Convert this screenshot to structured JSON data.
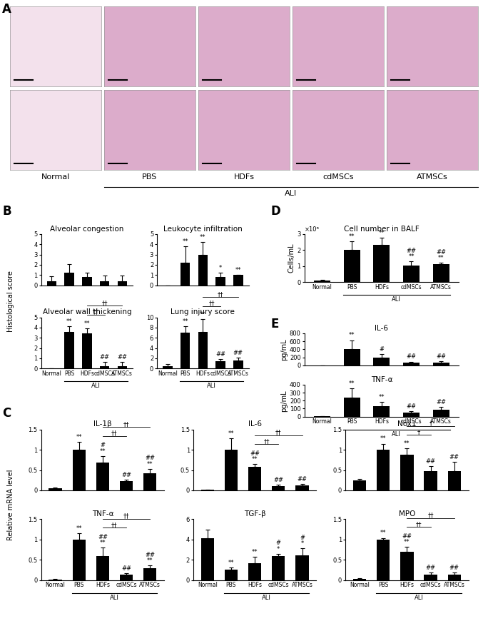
{
  "panel_A": {
    "panel": "A",
    "type": "image_grid",
    "rows": 2,
    "columns": [
      "Normal",
      "PBS",
      "HDFs",
      "cdMSCs",
      "ATMSCs"
    ],
    "group_label": "ALI",
    "group_span": [
      1,
      4
    ]
  },
  "chart_data": [
    {
      "type": "bar",
      "panel": "B",
      "title": "Alveolar congestion",
      "ylabel": "Histological score",
      "color": "#000000",
      "categories": [
        null,
        null,
        null,
        null,
        null
      ],
      "values": [
        0.4,
        1.2,
        0.8,
        0.4,
        0.4
      ],
      "errors": [
        0.5,
        0.85,
        0.45,
        0.55,
        0.55
      ],
      "marks": [
        [],
        [],
        [],
        [],
        []
      ],
      "brackets": [],
      "ylim": [
        0,
        5
      ],
      "yticks": [
        0,
        1,
        2,
        3,
        4,
        5
      ]
    },
    {
      "type": "bar",
      "title": "Leukocyte infiltration",
      "color": "#000000",
      "categories": [
        null,
        null,
        null,
        null,
        null
      ],
      "values": [
        0,
        2.2,
        3.0,
        0.8,
        1.0
      ],
      "errors": [
        0,
        1.6,
        1.2,
        0.45,
        0
      ],
      "marks": [
        [],
        [
          "**"
        ],
        [
          "**"
        ],
        [
          "*"
        ],
        [
          "**"
        ]
      ],
      "brackets": [],
      "ylim": [
        0,
        5
      ],
      "yticks": [
        0,
        1,
        2,
        3,
        4,
        5
      ]
    },
    {
      "type": "bar",
      "title": "Alveolar wall thickening",
      "color": "#000000",
      "categories": [
        "Normal",
        "PBS",
        "HDFs",
        "cdMSCs",
        "ATMSCs"
      ],
      "group_label": "ALI",
      "group_span": [
        1,
        4
      ],
      "values": [
        0,
        3.6,
        3.4,
        0.2,
        0.2
      ],
      "errors": [
        0,
        0.55,
        0.55,
        0.45,
        0.45
      ],
      "marks": [
        [],
        [
          "**"
        ],
        [
          "**"
        ],
        [
          "##"
        ],
        [
          "##"
        ]
      ],
      "brackets": [
        {
          "from": 2,
          "to": 3,
          "text": "††"
        },
        {
          "from": 2,
          "to": 4,
          "text": "††"
        }
      ],
      "ylim": [
        0,
        5
      ],
      "yticks": [
        0,
        1,
        2,
        3,
        4,
        5
      ]
    },
    {
      "type": "bar",
      "title": "Lung injury score",
      "color": "#000000",
      "categories": [
        "Normal",
        "PBS",
        "HDFs",
        "cdMSCs",
        "ATMSCs"
      ],
      "group_label": "ALI",
      "group_span": [
        1,
        4
      ],
      "values": [
        0.4,
        7.0,
        7.2,
        1.4,
        1.6
      ],
      "errors": [
        0.5,
        1.2,
        2.4,
        0.5,
        0.5
      ],
      "marks": [
        [],
        [
          "**"
        ],
        [
          "**"
        ],
        [
          "##"
        ],
        [
          "##"
        ]
      ],
      "brackets": [
        {
          "from": 2,
          "to": 3,
          "text": "††"
        },
        {
          "from": 2,
          "to": 4,
          "text": "††"
        }
      ],
      "ylim": [
        0,
        10
      ],
      "yticks": [
        0,
        2,
        4,
        6,
        8,
        10
      ]
    },
    {
      "type": "bar",
      "panel": "C",
      "title": "IL-1β",
      "ylabel": "Relative mRNA level",
      "color": "#000000",
      "categories": [
        null,
        null,
        null,
        null,
        null
      ],
      "values": [
        0.05,
        1.0,
        0.68,
        0.23,
        0.43
      ],
      "errors": [
        0.02,
        0.2,
        0.17,
        0.04,
        0.1
      ],
      "marks": [
        [],
        [
          "**"
        ],
        [
          "#",
          "**"
        ],
        [
          "##"
        ],
        [
          "##",
          "**"
        ]
      ],
      "brackets": [
        {
          "from": 2,
          "to": 3,
          "text": "††"
        },
        {
          "from": 2,
          "to": 4,
          "text": "††"
        }
      ],
      "ylim": [
        0,
        1.5
      ],
      "yticks": [
        0,
        0.5,
        1,
        1.5
      ]
    },
    {
      "type": "bar",
      "title": "IL-6",
      "color": "#000000",
      "categories": [
        null,
        null,
        null,
        null,
        null
      ],
      "values": [
        0.01,
        1.0,
        0.58,
        0.1,
        0.12
      ],
      "errors": [
        0.01,
        0.28,
        0.07,
        0.04,
        0.04
      ],
      "marks": [
        [],
        [
          "**"
        ],
        [
          "##",
          "**"
        ],
        [
          "##"
        ],
        [
          "##"
        ]
      ],
      "brackets": [
        {
          "from": 2,
          "to": 3,
          "text": "††"
        },
        {
          "from": 2,
          "to": 4,
          "text": "††"
        }
      ],
      "ylim": [
        0,
        1.5
      ],
      "yticks": [
        0,
        0.5,
        1,
        1.5
      ]
    },
    {
      "type": "bar",
      "title": "Nox1",
      "color": "#000000",
      "categories": [
        null,
        null,
        null,
        null,
        null
      ],
      "values": [
        0.24,
        1.0,
        0.87,
        0.47,
        0.48
      ],
      "errors": [
        0.04,
        0.15,
        0.17,
        0.12,
        0.22
      ],
      "marks": [
        [],
        [
          "**"
        ],
        [
          "**"
        ],
        [
          "##"
        ],
        [
          "##"
        ]
      ],
      "brackets": [
        {
          "from": 2,
          "to": 3,
          "text": "†"
        },
        {
          "from": 2,
          "to": 4,
          "text": "†"
        }
      ],
      "ylim": [
        0,
        1.5
      ],
      "yticks": [
        0,
        0.5,
        1,
        1.5
      ]
    },
    {
      "type": "bar",
      "title": "TNF-α",
      "color": "#000000",
      "categories": [
        "Normal",
        "PBS",
        "HDFs",
        "cdMSCs",
        "ATMSCs"
      ],
      "group_label": "ALI",
      "group_span": [
        1,
        4
      ],
      "values": [
        0.02,
        1.0,
        0.6,
        0.14,
        0.3
      ],
      "errors": [
        0.01,
        0.15,
        0.2,
        0.03,
        0.06
      ],
      "marks": [
        [],
        [
          "**"
        ],
        [
          "##",
          "**"
        ],
        [
          "##"
        ],
        [
          "##",
          "**"
        ]
      ],
      "brackets": [
        {
          "from": 2,
          "to": 3,
          "text": "††"
        },
        {
          "from": 2,
          "to": 4,
          "text": "††"
        }
      ],
      "ylim": [
        0,
        1.5
      ],
      "yticks": [
        0,
        0.5,
        1,
        1.5
      ]
    },
    {
      "type": "bar",
      "title": "TGF-β",
      "color": "#000000",
      "categories": [
        "Normal",
        "PBS",
        "HDFs",
        "cdMSCs",
        "ATMSCs"
      ],
      "group_label": "ALI",
      "group_span": [
        1,
        4
      ],
      "values": [
        4.1,
        1.0,
        1.7,
        2.35,
        2.45
      ],
      "errors": [
        0.9,
        0.25,
        0.6,
        0.25,
        0.7
      ],
      "marks": [
        [],
        [
          "**"
        ],
        [
          "**"
        ],
        [
          "#",
          "*"
        ],
        [
          "#",
          "*"
        ]
      ],
      "brackets": [],
      "ylim": [
        0,
        6
      ],
      "yticks": [
        0,
        2,
        4,
        6
      ]
    },
    {
      "type": "bar",
      "title": "MPO",
      "color": "#000000",
      "categories": [
        "Normal",
        "PBS",
        "HDFs",
        "cdMSCs",
        "ATMSCs"
      ],
      "group_label": "ALI",
      "group_span": [
        1,
        4
      ],
      "values": [
        0.03,
        1.0,
        0.7,
        0.13,
        0.13
      ],
      "errors": [
        0.01,
        0.04,
        0.12,
        0.05,
        0.05
      ],
      "marks": [
        [],
        [
          "**"
        ],
        [
          "##",
          "**"
        ],
        [
          "##"
        ],
        [
          "##"
        ]
      ],
      "brackets": [
        {
          "from": 2,
          "to": 3,
          "text": "††"
        },
        {
          "from": 2,
          "to": 4,
          "text": "††"
        }
      ],
      "ylim": [
        0,
        1.5
      ],
      "yticks": [
        0,
        0.5,
        1,
        1.5
      ]
    },
    {
      "type": "bar",
      "panel": "D",
      "title": "Cell number in BALF",
      "ylabel": "Cells/mL",
      "unit_label": "×10⁶",
      "color": "#000000",
      "categories": [
        "Normal",
        "PBS",
        "HDFs",
        "cdMSCs",
        "ATMSCs"
      ],
      "group_label": "ALI",
      "group_span": [
        1,
        4
      ],
      "values": [
        0.1,
        2.0,
        2.3,
        1.05,
        1.1
      ],
      "errors": [
        0.02,
        0.55,
        0.45,
        0.25,
        0.1
      ],
      "marks": [
        [],
        [
          "**"
        ],
        [
          "**"
        ],
        [
          "##",
          "**"
        ],
        [
          "##",
          "**"
        ]
      ],
      "brackets": [],
      "ylim": [
        0,
        3
      ],
      "yticks": [
        0,
        1,
        2,
        3
      ]
    },
    {
      "type": "bar",
      "panel": "E",
      "title": "IL-6",
      "ylabel": "pg/mL",
      "color": "#000000",
      "categories": [
        null,
        null,
        null,
        null,
        null
      ],
      "values": [
        3,
        410,
        200,
        65,
        75
      ],
      "errors": [
        2,
        220,
        85,
        30,
        35
      ],
      "marks": [
        [],
        [
          "**"
        ],
        [
          "#"
        ],
        [
          "##"
        ],
        [
          "##"
        ]
      ],
      "brackets": [],
      "ylim": [
        0,
        800
      ],
      "yticks": [
        0,
        200,
        400,
        600,
        800
      ]
    },
    {
      "type": "bar",
      "title": "TNF-α",
      "ylabel": "pg/mL",
      "color": "#000000",
      "categories": [
        "Normal",
        "PBS",
        "HDFs",
        "cdMSCs",
        "ATMSCs"
      ],
      "group_label": "ALI",
      "group_span": [
        1,
        4
      ],
      "values": [
        2,
        235,
        130,
        50,
        90
      ],
      "errors": [
        1,
        120,
        55,
        20,
        35
      ],
      "marks": [
        [],
        [
          "**"
        ],
        [
          "**"
        ],
        [
          "##"
        ],
        [
          "##"
        ]
      ],
      "brackets": [],
      "ylim": [
        0,
        400
      ],
      "yticks": [
        0,
        100,
        200,
        300,
        400
      ]
    }
  ]
}
